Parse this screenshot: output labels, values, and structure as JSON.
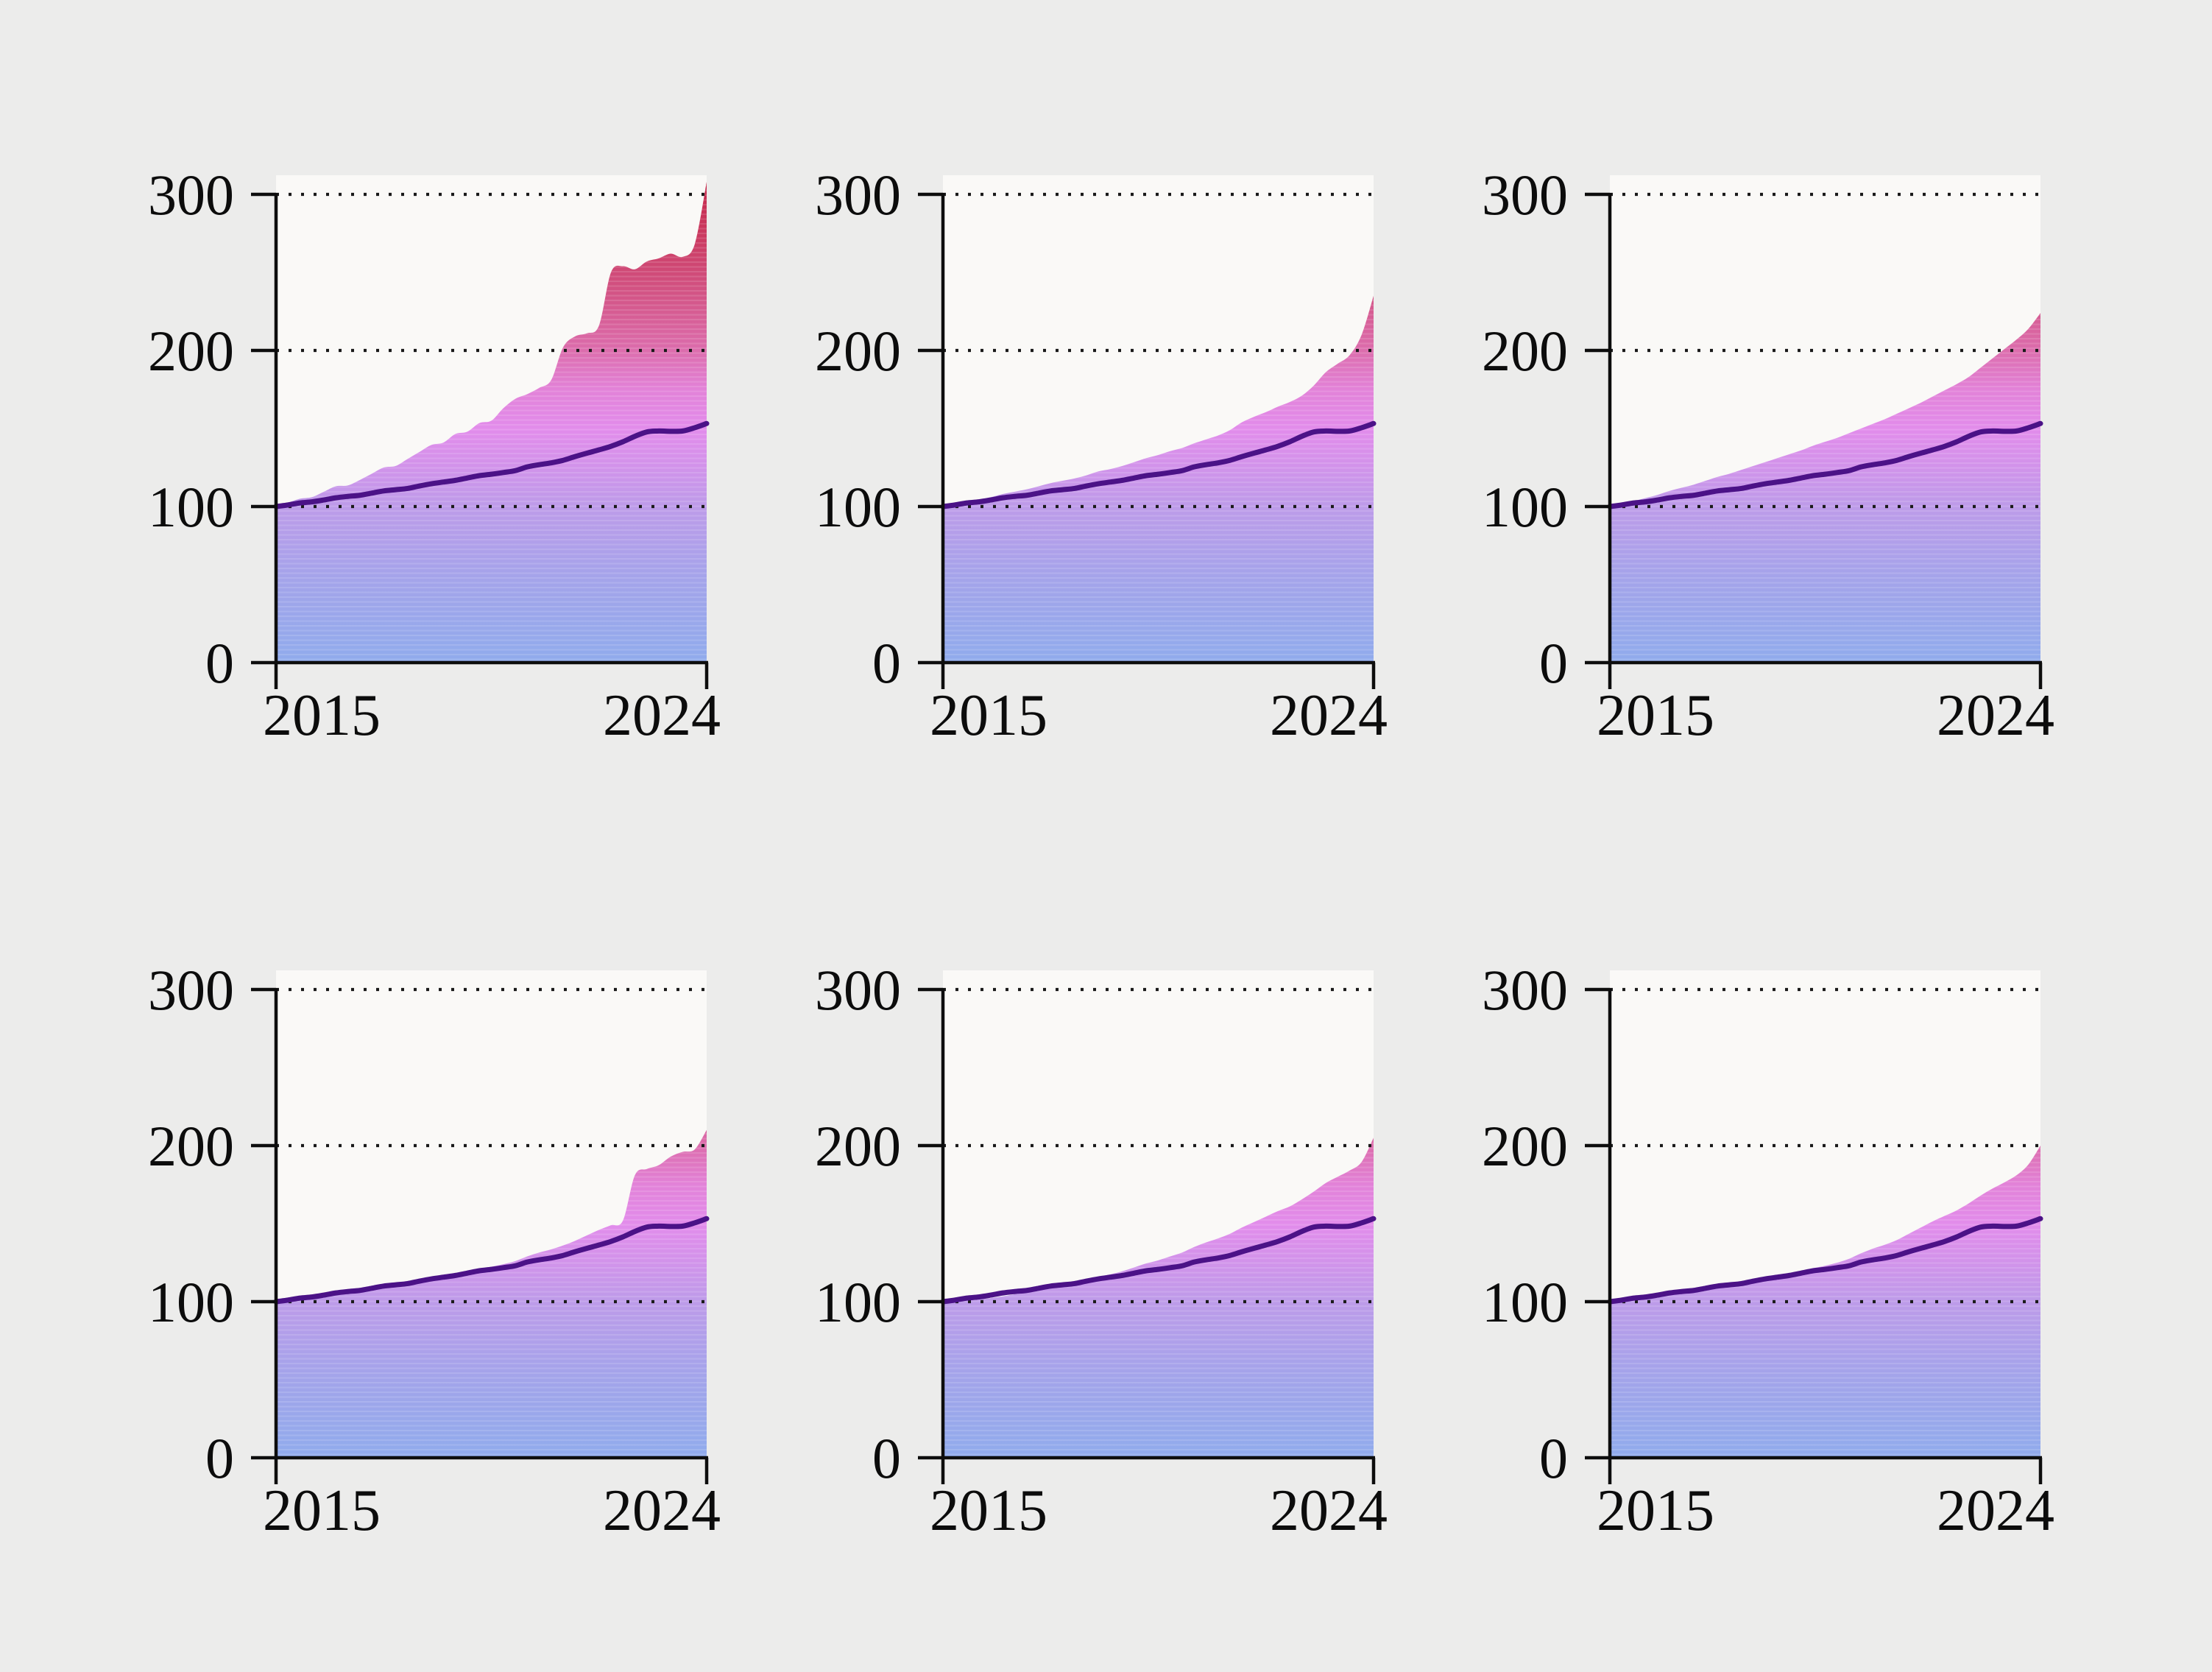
{
  "page": {
    "background_color": "#ececeb",
    "plot_background_color": "#faf9f7",
    "axis_color": "#0d0d0d",
    "gridline_color": "#1a1a1a",
    "line_color": "#4b1287"
  },
  "chart_data": {
    "type": "area",
    "layout": {
      "rows": 2,
      "cols": 3,
      "panels": 6
    },
    "title": "",
    "xlabel": "",
    "ylabel": "",
    "x_domain": [
      2015,
      2024
    ],
    "ylim": [
      0,
      300
    ],
    "y_tick_labels": [
      "0",
      "100",
      "200",
      "300"
    ],
    "y_tick_values": [
      0,
      100,
      200,
      300
    ],
    "x_tick_labels": [
      "2015",
      "2024"
    ],
    "grid": "dotted horizontal gridlines at 100, 200, 300 drawn above fill",
    "legend": "none",
    "gradient_stops": [
      [
        0,
        "#90abec"
      ],
      [
        50,
        "#a2a4ea"
      ],
      [
        100,
        "#bd9be9"
      ],
      [
        125,
        "#d193ea"
      ],
      [
        150,
        "#e28ceb"
      ],
      [
        175,
        "#e282d8"
      ],
      [
        200,
        "#dc6dad"
      ],
      [
        235,
        "#d35587"
      ],
      [
        270,
        "#cb3c63"
      ],
      [
        311,
        "#c52749"
      ]
    ],
    "x_sampling": "37 evenly spaced points from 2015 to 2024 (quarterly)",
    "line_series": {
      "name": "reference-index-line",
      "values": [
        100,
        101,
        102.3,
        103,
        104.2,
        105.6,
        106.5,
        107.2,
        108.6,
        110,
        110.8,
        111.6,
        113.2,
        114.6,
        115.7,
        116.8,
        118.3,
        119.8,
        120.7,
        121.8,
        123,
        125.4,
        126.8,
        128,
        129.6,
        132,
        134.2,
        136.3,
        138.6,
        141.5,
        145,
        147.8,
        148.4,
        148.2,
        148.4,
        150.5,
        153.2
      ]
    },
    "charts": [
      {
        "id": "top-left",
        "area_end_value": 308,
        "area_values": [
          100,
          102.5,
          105,
          106,
          109.5,
          113,
          113.5,
          117,
          121,
          125,
          126,
          130.5,
          135,
          139.5,
          141,
          146.5,
          148,
          153.5,
          155,
          163,
          169,
          172,
          176,
          181,
          202,
          209,
          211,
          216,
          250,
          254,
          252,
          257,
          259,
          262,
          260,
          268,
          308
        ]
      },
      {
        "id": "top-middle",
        "area_end_value": 235,
        "area_values": [
          100,
          101.5,
          103,
          104.5,
          106,
          108,
          109.5,
          111,
          113,
          115,
          116.5,
          118,
          120,
          122.5,
          124,
          126,
          128.5,
          131,
          133,
          135.5,
          137.5,
          140.5,
          143,
          145.5,
          149,
          154,
          157.5,
          160.5,
          164,
          167,
          171,
          177.5,
          186,
          191.5,
          197,
          210,
          235
        ]
      },
      {
        "id": "top-right",
        "area_end_value": 224,
        "area_values": [
          100,
          101.5,
          103.5,
          105.5,
          107.5,
          110,
          112,
          114,
          116.5,
          119,
          121,
          123.5,
          126,
          128.5,
          131,
          133.5,
          136,
          139,
          141.5,
          144,
          147,
          150,
          153,
          156,
          159.5,
          163,
          166.5,
          170.5,
          174.5,
          178.5,
          183,
          189,
          195,
          201,
          207,
          214,
          224
        ]
      },
      {
        "id": "bottom-left",
        "area_end_value": 210,
        "area_values": [
          100,
          101.2,
          102.6,
          103.4,
          104.6,
          106,
          107,
          107.8,
          109.2,
          110.6,
          111.4,
          112.2,
          113.8,
          115.2,
          116.4,
          117.6,
          119.2,
          121,
          122.4,
          124,
          126,
          129,
          131.5,
          133.5,
          136,
          139,
          142.5,
          146,
          149,
          152,
          181,
          185,
          187.5,
          193,
          196,
          197.5,
          210
        ]
      },
      {
        "id": "bottom-middle",
        "area_end_value": 205,
        "area_values": [
          100,
          100.2,
          100.7,
          101.3,
          102.3,
          103.4,
          104.8,
          106.2,
          107.8,
          109.6,
          110.6,
          112,
          114,
          116,
          117.5,
          119.5,
          122,
          124.5,
          126.5,
          129,
          131.5,
          135,
          138,
          140.5,
          143.5,
          147.5,
          151,
          154.5,
          158,
          161,
          165.5,
          170.5,
          176,
          180,
          184,
          189.5,
          205
        ]
      },
      {
        "id": "bottom-right",
        "area_end_value": 200,
        "area_values": [
          100,
          101,
          102.3,
          103,
          104.2,
          105.6,
          106.5,
          107.2,
          108.6,
          110,
          110.9,
          111.8,
          113.5,
          115,
          116.2,
          117.8,
          119.5,
          121.5,
          123,
          125,
          127.5,
          131,
          134,
          136.5,
          139.5,
          143.5,
          147.5,
          151.5,
          155,
          158.5,
          163,
          168,
          172.5,
          176.5,
          181,
          188,
          200
        ]
      }
    ]
  }
}
